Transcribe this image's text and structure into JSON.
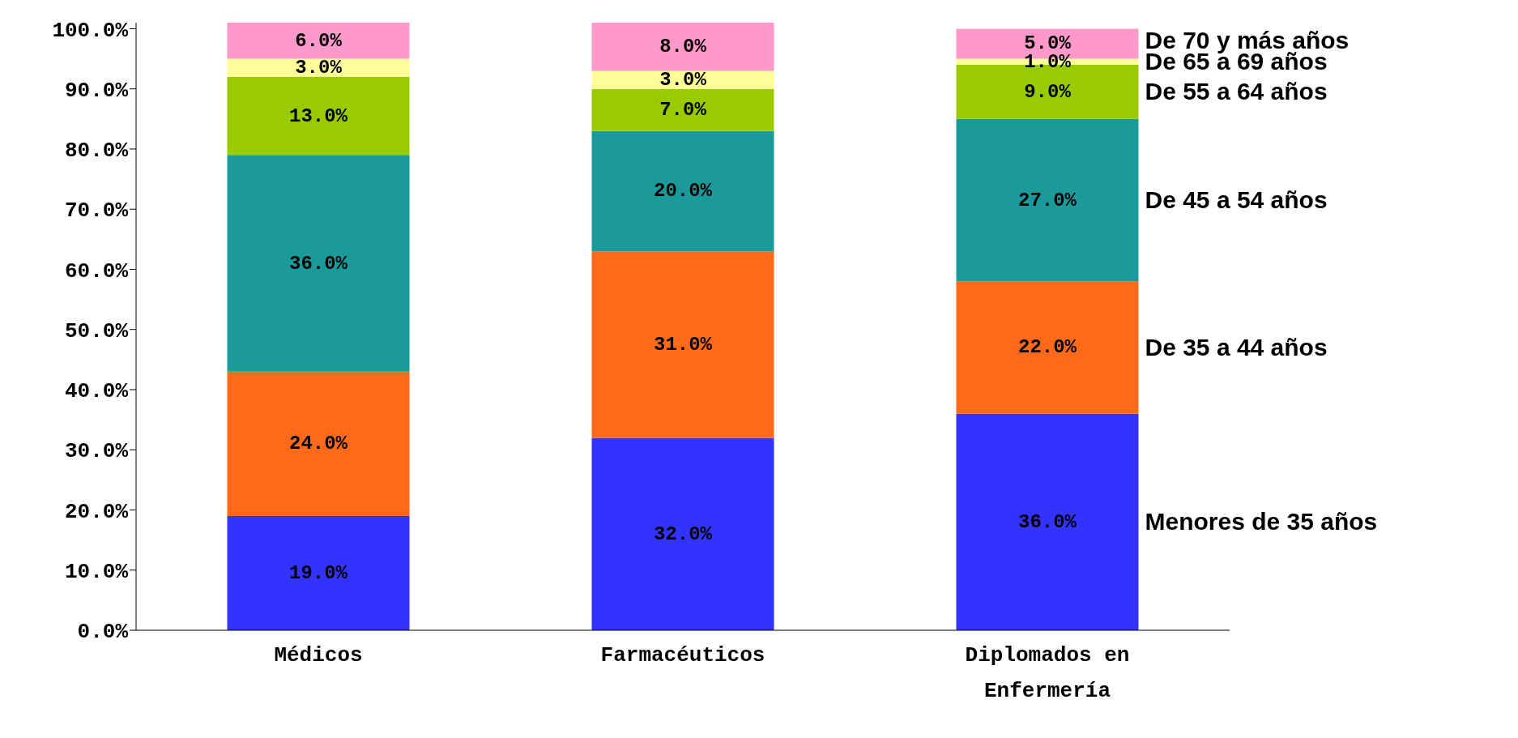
{
  "chart_data": {
    "type": "bar",
    "stacked": true,
    "categories": [
      "Médicos",
      "Farmacéuticos",
      "Diplomados en Enfermería"
    ],
    "series": [
      {
        "name": "Menores de 35 años",
        "color": "#3333ff",
        "values": [
          19,
          32,
          36
        ],
        "value_labels": [
          "19.0%",
          "32.0%",
          "36.0%"
        ]
      },
      {
        "name": "De 35 a 44 años",
        "color": "#ff6a1a",
        "values": [
          24,
          31,
          22
        ],
        "value_labels": [
          "24.0%",
          "31.0%",
          "22.0%"
        ]
      },
      {
        "name": "De 45 a 54 años",
        "color": "#1a9a9a",
        "values": [
          36,
          20,
          27
        ],
        "value_labels": [
          "36.0%",
          "20.0%",
          "27.0%"
        ]
      },
      {
        "name": "De 55 a 64 años",
        "color": "#99cc00",
        "values": [
          13,
          7,
          9
        ],
        "value_labels": [
          "13.0%",
          "7.0%",
          "9.0%"
        ]
      },
      {
        "name": "De 65 a 69 años",
        "color": "#ffff99",
        "values": [
          3,
          3,
          1
        ],
        "value_labels": [
          "3.0%",
          "3.0%",
          "1.0%"
        ]
      },
      {
        "name": "De 70 y más años",
        "color": "#ff99cc",
        "values": [
          6,
          8,
          5
        ],
        "value_labels": [
          "6.0%",
          "8.0%",
          "5.0%"
        ]
      }
    ],
    "ylim": [
      0,
      101
    ],
    "yticks": [
      {
        "value": 0,
        "label": "0.0%"
      },
      {
        "value": 10,
        "label": "10.0%"
      },
      {
        "value": 20,
        "label": "20.0%"
      },
      {
        "value": 30,
        "label": "30.0%"
      },
      {
        "value": 40,
        "label": "40.0%"
      },
      {
        "value": 50,
        "label": "50.0%"
      },
      {
        "value": 60,
        "label": "60.0%"
      },
      {
        "value": 70,
        "label": "70.0%"
      },
      {
        "value": 80,
        "label": "80.0%"
      },
      {
        "value": 90,
        "label": "90.0%"
      },
      {
        "value": 100,
        "label": "100.0%"
      }
    ],
    "grid": false,
    "legend": false
  }
}
